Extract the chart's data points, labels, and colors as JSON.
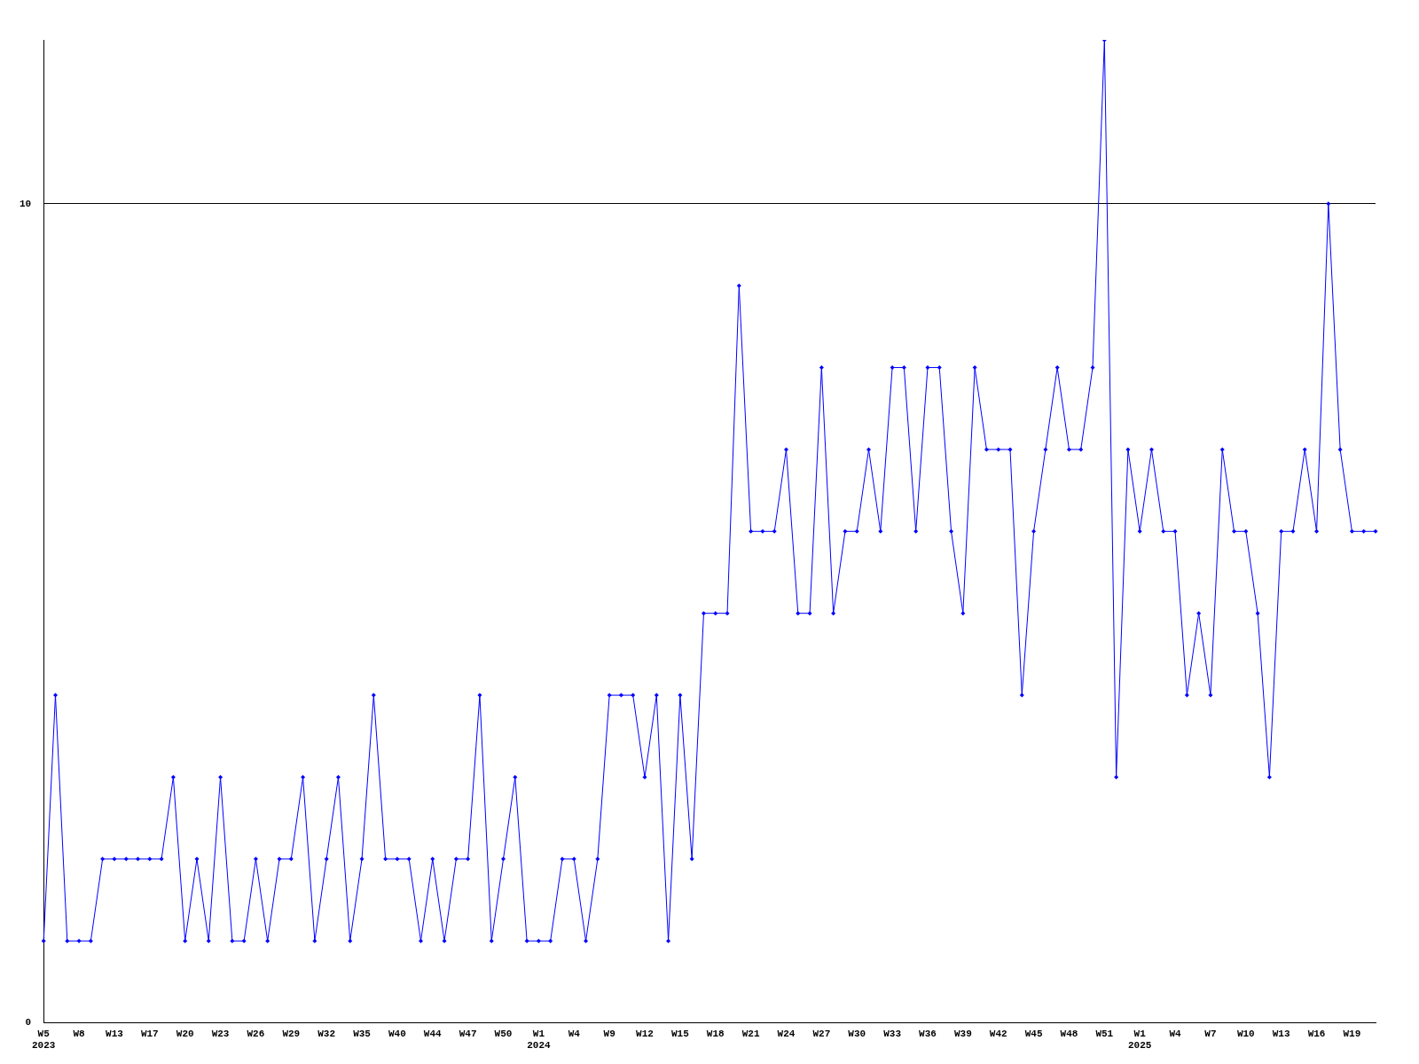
{
  "chart_data": {
    "type": "line",
    "categories": [
      "W5\n2023",
      null,
      null,
      "W8",
      null,
      null,
      "W13",
      null,
      null,
      "W17",
      null,
      null,
      "W20",
      null,
      null,
      "W23",
      null,
      null,
      "W26",
      null,
      null,
      "W29",
      null,
      null,
      "W32",
      null,
      null,
      "W35",
      null,
      null,
      "W40",
      null,
      null,
      "W44",
      null,
      null,
      "W47",
      null,
      null,
      "W50",
      null,
      null,
      "W1\n2024",
      null,
      null,
      "W4",
      null,
      null,
      "W9",
      null,
      null,
      "W12",
      null,
      null,
      "W15",
      null,
      null,
      "W18",
      null,
      null,
      "W21",
      null,
      null,
      "W24",
      null,
      null,
      "W27",
      null,
      null,
      "W30",
      null,
      null,
      "W33",
      null,
      null,
      "W36",
      null,
      null,
      "W39",
      null,
      null,
      "W42",
      null,
      null,
      "W45",
      null,
      null,
      "W48",
      null,
      null,
      "W51",
      null,
      null,
      "W1\n2025",
      null,
      null,
      "W4",
      null,
      null,
      "W7",
      null,
      null,
      "W10",
      null,
      null,
      "W13",
      null,
      null,
      "W16",
      null,
      null,
      "W19",
      null,
      null
    ],
    "series": [
      {
        "color": "#0000ff",
        "values": [
          1,
          4,
          1,
          1,
          1,
          2,
          2,
          2,
          2,
          2,
          2,
          3,
          1,
          2,
          1,
          3,
          1,
          1,
          2,
          1,
          2,
          2,
          3,
          1,
          2,
          3,
          1,
          2,
          4,
          2,
          2,
          2,
          1,
          2,
          1,
          2,
          2,
          4,
          1,
          2,
          3,
          1,
          1,
          1,
          2,
          2,
          1,
          2,
          4,
          4,
          4,
          3,
          4,
          1,
          4,
          2,
          5,
          5,
          5,
          9,
          6,
          6,
          6,
          7,
          5,
          5,
          8,
          5,
          6,
          6,
          7,
          6,
          8,
          8,
          6,
          8,
          8,
          6,
          5,
          8,
          7,
          7,
          7,
          4,
          6,
          7,
          8,
          7,
          7,
          8,
          12,
          3,
          7,
          6,
          7,
          6,
          6,
          4,
          5,
          4,
          7,
          6,
          6,
          5,
          3,
          6,
          6,
          7,
          6,
          10,
          7,
          6,
          6,
          6
        ]
      }
    ],
    "ylim": [
      0,
      12
    ],
    "yticks": [
      0,
      10
    ],
    "grid": "y",
    "legend": false,
    "marker": "diamond",
    "line_style": "solid"
  }
}
